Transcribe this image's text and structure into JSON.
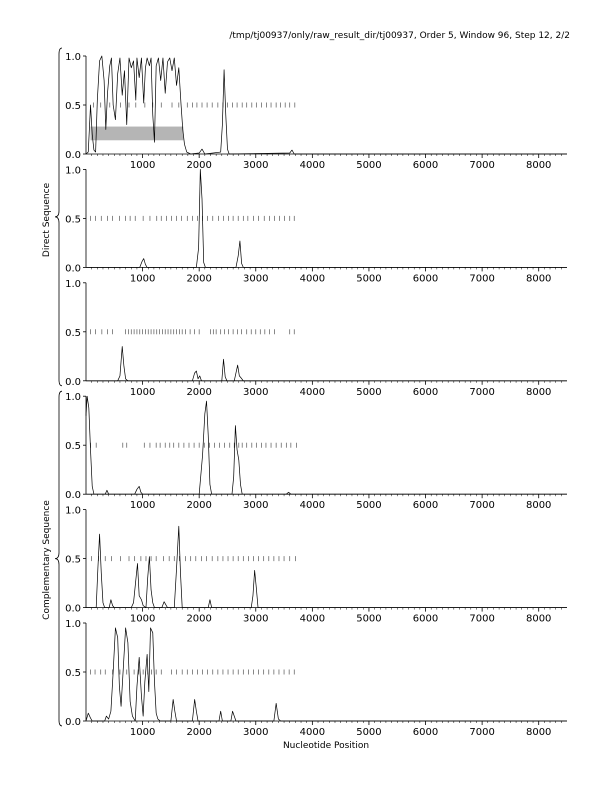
{
  "title": "/tmp/tj00937/only/raw_result_dir/tj00937, Order 5, Window 96, Step 12, 2/2",
  "xlabel": "Nucleotide Position",
  "group_labels": [
    "Direct Sequence",
    "Complementary Sequence"
  ],
  "colors": {
    "line": "#000000",
    "ticks": "#555555",
    "highlight": "#b5b5b5"
  },
  "chart_data": {
    "type": "line",
    "xlim": [
      0,
      8500
    ],
    "ylim": [
      0,
      1
    ],
    "x_ticks": [
      1000,
      2000,
      3000,
      4000,
      5000,
      6000,
      7000,
      8000
    ],
    "y_ticks": [
      "0.0",
      "0.5",
      "1.0"
    ],
    "panels": [
      {
        "group": "Direct Sequence",
        "highlight": {
          "x_start": 80,
          "x_end": 1720,
          "y_start": 0.14,
          "y_end": 0.28
        },
        "marker_y": 0.5,
        "markers": [
          130,
          260,
          420,
          610,
          760,
          880,
          1040,
          1180,
          1330,
          1520,
          1640,
          1790,
          1880,
          1960,
          2050,
          2140,
          2230,
          2330,
          2420,
          2500,
          2590,
          2670,
          2760,
          2840,
          2930,
          3010,
          3100,
          3190,
          3270,
          3360,
          3440,
          3520,
          3600,
          3690
        ],
        "points": [
          [
            0,
            0
          ],
          [
            40,
            0.02
          ],
          [
            80,
            0.5
          ],
          [
            110,
            0.2
          ],
          [
            140,
            0.04
          ],
          [
            170,
            0.02
          ],
          [
            200,
            0.55
          ],
          [
            240,
            0.95
          ],
          [
            280,
            1.0
          ],
          [
            320,
            0.75
          ],
          [
            350,
            0.25
          ],
          [
            380,
            0.62
          ],
          [
            420,
            0.9
          ],
          [
            450,
            0.98
          ],
          [
            480,
            0.5
          ],
          [
            520,
            0.35
          ],
          [
            560,
            0.82
          ],
          [
            600,
            0.98
          ],
          [
            640,
            0.6
          ],
          [
            680,
            0.85
          ],
          [
            720,
            0.3
          ],
          [
            760,
            0.98
          ],
          [
            800,
            0.88
          ],
          [
            840,
            0.95
          ],
          [
            880,
            0.55
          ],
          [
            900,
            0.98
          ],
          [
            940,
            0.78
          ],
          [
            980,
            0.98
          ],
          [
            1020,
            0.52
          ],
          [
            1050,
            0.88
          ],
          [
            1080,
            0.98
          ],
          [
            1120,
            0.9
          ],
          [
            1150,
            0.98
          ],
          [
            1180,
            0.4
          ],
          [
            1210,
            0.12
          ],
          [
            1240,
            0.9
          ],
          [
            1280,
            0.98
          ],
          [
            1320,
            0.75
          ],
          [
            1360,
            0.98
          ],
          [
            1400,
            0.62
          ],
          [
            1440,
            0.94
          ],
          [
            1480,
            0.98
          ],
          [
            1520,
            0.85
          ],
          [
            1560,
            0.98
          ],
          [
            1600,
            0.7
          ],
          [
            1640,
            0.88
          ],
          [
            1680,
            0.5
          ],
          [
            1710,
            0.25
          ],
          [
            1740,
            0.1
          ],
          [
            1780,
            0.02
          ],
          [
            1850,
            0
          ],
          [
            2000,
            0.01
          ],
          [
            2050,
            0.05
          ],
          [
            2100,
            0
          ],
          [
            2380,
            0.02
          ],
          [
            2410,
            0.3
          ],
          [
            2440,
            0.86
          ],
          [
            2470,
            0.4
          ],
          [
            2500,
            0.05
          ],
          [
            2530,
            0
          ],
          [
            3600,
            0.01
          ],
          [
            3640,
            0.04
          ],
          [
            3680,
            0
          ],
          [
            8500,
            0
          ]
        ]
      },
      {
        "group": "Direct Sequence",
        "marker_y": 0.5,
        "markers": [
          80,
          170,
          270,
          380,
          470,
          590,
          700,
          780,
          870,
          1010,
          1130,
          1250,
          1330,
          1420,
          1510,
          1600,
          1690,
          1790,
          1880,
          1970,
          2060,
          2150,
          2240,
          2340,
          2430,
          2520,
          2600,
          2690,
          2780,
          2860,
          2960,
          3050,
          3150,
          3240,
          3330,
          3420,
          3510,
          3600,
          3680
        ],
        "points": [
          [
            0,
            0
          ],
          [
            950,
            0
          ],
          [
            990,
            0.06
          ],
          [
            1020,
            0.09
          ],
          [
            1050,
            0.03
          ],
          [
            1080,
            0
          ],
          [
            1950,
            0
          ],
          [
            1990,
            0.2
          ],
          [
            2020,
            1.0
          ],
          [
            2050,
            0.7
          ],
          [
            2080,
            0.05
          ],
          [
            2110,
            0
          ],
          [
            2650,
            0
          ],
          [
            2690,
            0.12
          ],
          [
            2720,
            0.27
          ],
          [
            2750,
            0.04
          ],
          [
            2780,
            0
          ],
          [
            8500,
            0
          ]
        ]
      },
      {
        "group": "Direct Sequence",
        "marker_y": 0.5,
        "markers": [
          80,
          170,
          280,
          380,
          470,
          700,
          750,
          800,
          850,
          900,
          950,
          1000,
          1050,
          1100,
          1150,
          1200,
          1250,
          1300,
          1350,
          1400,
          1450,
          1500,
          1550,
          1600,
          1650,
          1700,
          1760,
          1840,
          1920,
          2000,
          2200,
          2250,
          2300,
          2380,
          2450,
          2520,
          2600,
          2680,
          2750,
          2840,
          2920,
          3000,
          3080,
          3160,
          3240,
          3330,
          3600,
          3680
        ],
        "points": [
          [
            0,
            0
          ],
          [
            560,
            0
          ],
          [
            600,
            0.05
          ],
          [
            640,
            0.35
          ],
          [
            670,
            0.15
          ],
          [
            700,
            0.02
          ],
          [
            740,
            0
          ],
          [
            1880,
            0
          ],
          [
            1920,
            0.08
          ],
          [
            1950,
            0.1
          ],
          [
            1980,
            0.02
          ],
          [
            2010,
            0.05
          ],
          [
            2040,
            0
          ],
          [
            2400,
            0
          ],
          [
            2430,
            0.22
          ],
          [
            2460,
            0.04
          ],
          [
            2490,
            0
          ],
          [
            2620,
            0
          ],
          [
            2650,
            0.08
          ],
          [
            2680,
            0.16
          ],
          [
            2710,
            0.05
          ],
          [
            2740,
            0.03
          ],
          [
            2780,
            0
          ],
          [
            8500,
            0
          ]
        ]
      },
      {
        "group": "Complementary Sequence",
        "marker_y": 0.5,
        "markers": [
          80,
          180,
          650,
          720,
          1030,
          1130,
          1240,
          1310,
          1400,
          1480,
          1550,
          1640,
          1730,
          1820,
          1910,
          2000,
          2090,
          2180,
          2270,
          2360,
          2450,
          2540,
          2620,
          2700,
          2760,
          2840,
          2930,
          3010,
          3100,
          3180,
          3270,
          3360,
          3450,
          3540,
          3620,
          3720
        ],
        "points": [
          [
            0,
            0.8
          ],
          [
            20,
            1.0
          ],
          [
            50,
            0.88
          ],
          [
            80,
            0.45
          ],
          [
            110,
            0.08
          ],
          [
            140,
            0
          ],
          [
            340,
            0
          ],
          [
            370,
            0.04
          ],
          [
            400,
            0
          ],
          [
            860,
            0
          ],
          [
            900,
            0.05
          ],
          [
            940,
            0.08
          ],
          [
            970,
            0.02
          ],
          [
            1000,
            0
          ],
          [
            2000,
            0
          ],
          [
            2060,
            0.4
          ],
          [
            2100,
            0.82
          ],
          [
            2130,
            0.95
          ],
          [
            2160,
            0.6
          ],
          [
            2190,
            0.1
          ],
          [
            2220,
            0
          ],
          [
            2580,
            0
          ],
          [
            2610,
            0.18
          ],
          [
            2640,
            0.7
          ],
          [
            2670,
            0.45
          ],
          [
            2700,
            0.35
          ],
          [
            2730,
            0.1
          ],
          [
            2760,
            0
          ],
          [
            3540,
            0
          ],
          [
            3580,
            0.02
          ],
          [
            3620,
            0
          ],
          [
            8500,
            0
          ]
        ]
      },
      {
        "group": "Complementary Sequence",
        "marker_y": 0.5,
        "markers": [
          100,
          220,
          340,
          450,
          610,
          760,
          860,
          970,
          1060,
          1150,
          1240,
          1370,
          1470,
          1560,
          1650,
          1760,
          1850,
          1940,
          2040,
          2130,
          2230,
          2330,
          2420,
          2510,
          2600,
          2690,
          2780,
          2870,
          2960,
          3050,
          3140,
          3230,
          3320,
          3410,
          3500,
          3600,
          3700
        ],
        "points": [
          [
            0,
            0
          ],
          [
            180,
            0
          ],
          [
            210,
            0.4
          ],
          [
            240,
            0.75
          ],
          [
            270,
            0.35
          ],
          [
            300,
            0.05
          ],
          [
            330,
            0
          ],
          [
            410,
            0
          ],
          [
            440,
            0.08
          ],
          [
            470,
            0.02
          ],
          [
            500,
            0
          ],
          [
            800,
            0
          ],
          [
            840,
            0.05
          ],
          [
            880,
            0.28
          ],
          [
            910,
            0.45
          ],
          [
            940,
            0.12
          ],
          [
            980,
            0.08
          ],
          [
            1010,
            0.02
          ],
          [
            1060,
            0
          ],
          [
            1090,
            0.3
          ],
          [
            1120,
            0.52
          ],
          [
            1150,
            0.18
          ],
          [
            1180,
            0.05
          ],
          [
            1210,
            0
          ],
          [
            1340,
            0
          ],
          [
            1380,
            0.06
          ],
          [
            1410,
            0.03
          ],
          [
            1440,
            0
          ],
          [
            1560,
            0
          ],
          [
            1600,
            0.4
          ],
          [
            1640,
            0.83
          ],
          [
            1670,
            0.35
          ],
          [
            1700,
            0
          ],
          [
            2160,
            0
          ],
          [
            2190,
            0.08
          ],
          [
            2220,
            0
          ],
          [
            2920,
            0
          ],
          [
            2950,
            0.12
          ],
          [
            2980,
            0.38
          ],
          [
            3010,
            0.2
          ],
          [
            3040,
            0
          ],
          [
            8500,
            0
          ]
        ]
      },
      {
        "group": "Complementary Sequence",
        "marker_y": 0.5,
        "markers": [
          80,
          160,
          260,
          340,
          470,
          600,
          720,
          850,
          930,
          1010,
          1090,
          1160,
          1240,
          1330,
          1510,
          1600,
          1700,
          1790,
          1880,
          1970,
          2060,
          2150,
          2240,
          2330,
          2420,
          2510,
          2600,
          2690,
          2780,
          2870,
          2960,
          3050,
          3140,
          3230,
          3320,
          3410,
          3500,
          3590,
          3680
        ],
        "points": [
          [
            0,
            0
          ],
          [
            40,
            0.08
          ],
          [
            80,
            0.03
          ],
          [
            110,
            0
          ],
          [
            330,
            0
          ],
          [
            360,
            0.05
          ],
          [
            400,
            0.02
          ],
          [
            440,
            0.1
          ],
          [
            480,
            0.5
          ],
          [
            520,
            0.95
          ],
          [
            560,
            0.85
          ],
          [
            590,
            0.35
          ],
          [
            620,
            0.15
          ],
          [
            660,
            0.55
          ],
          [
            700,
            0.95
          ],
          [
            740,
            0.8
          ],
          [
            780,
            0.2
          ],
          [
            820,
            0.05
          ],
          [
            870,
            0
          ],
          [
            900,
            0.35
          ],
          [
            940,
            0.65
          ],
          [
            980,
            0.25
          ],
          [
            1010,
            0.05
          ],
          [
            1040,
            0.4
          ],
          [
            1080,
            0.68
          ],
          [
            1110,
            0.3
          ],
          [
            1140,
            0.95
          ],
          [
            1180,
            0.9
          ],
          [
            1210,
            0.4
          ],
          [
            1240,
            0.08
          ],
          [
            1270,
            0.02
          ],
          [
            1310,
            0
          ],
          [
            1500,
            0
          ],
          [
            1540,
            0.22
          ],
          [
            1570,
            0.1
          ],
          [
            1600,
            0
          ],
          [
            1880,
            0
          ],
          [
            1920,
            0.22
          ],
          [
            1950,
            0.1
          ],
          [
            1980,
            0
          ],
          [
            2350,
            0
          ],
          [
            2380,
            0.1
          ],
          [
            2410,
            0
          ],
          [
            2560,
            0
          ],
          [
            2590,
            0.1
          ],
          [
            2620,
            0.05
          ],
          [
            2650,
            0
          ],
          [
            3320,
            0
          ],
          [
            3360,
            0.18
          ],
          [
            3400,
            0.02
          ],
          [
            3440,
            0
          ],
          [
            8500,
            0
          ]
        ]
      }
    ]
  }
}
